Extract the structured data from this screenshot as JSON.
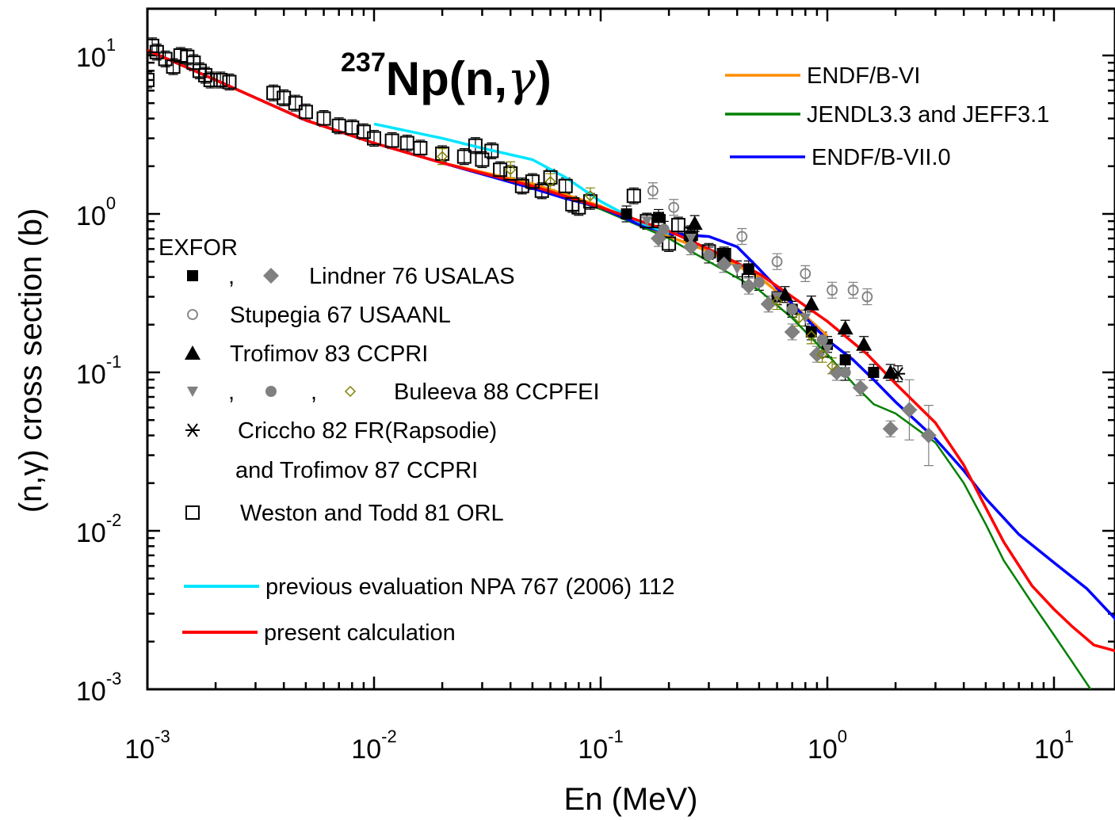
{
  "chart_data": {
    "type": "scatter",
    "title": {
      "superscript": "237",
      "text": "Np(n,",
      "greek": "γ",
      "close": ")"
    },
    "xlabel": "En (MeV)",
    "ylabel": "(n,γ) cross section (b)",
    "x_scale": "log",
    "y_scale": "log",
    "xlim": [
      0.001,
      20
    ],
    "ylim": [
      0.001,
      20
    ],
    "x_ticks": [
      {
        "base": "10",
        "exp": "-3",
        "value": 0.001
      },
      {
        "base": "10",
        "exp": "-2",
        "value": 0.01
      },
      {
        "base": "10",
        "exp": "-1",
        "value": 0.1
      },
      {
        "base": "10",
        "exp": "0",
        "value": 1
      },
      {
        "base": "10",
        "exp": "1",
        "value": 10
      }
    ],
    "y_ticks": [
      {
        "base": "10",
        "exp": "-3",
        "value": 0.001
      },
      {
        "base": "10",
        "exp": "-2",
        "value": 0.01
      },
      {
        "base": "10",
        "exp": "-1",
        "value": 0.1
      },
      {
        "base": "10",
        "exp": "0",
        "value": 1
      },
      {
        "base": "10",
        "exp": "1",
        "value": 10
      }
    ],
    "evaluations_legend": [
      {
        "label": "ENDF/B-VI",
        "color": "#ff8c00"
      },
      {
        "label": "JENDL3.3 and JEFF3.1",
        "color": "#008000"
      },
      {
        "label": "ENDF/B-VII.0",
        "color": "#0000ff"
      }
    ],
    "exfor_legend": {
      "heading": "EXFOR",
      "entries": [
        {
          "markers": [
            "square-filled",
            "diamond-gray"
          ],
          "label": "Lindner 76 USALAS"
        },
        {
          "markers": [
            "circle-open"
          ],
          "label": "Stupegia 67 USAANL"
        },
        {
          "markers": [
            "triangle-filled"
          ],
          "label": "Trofimov 83 CCPRI"
        },
        {
          "markers": [
            "triangle-down-gray",
            "circle-gray",
            "diamond-open-olive"
          ],
          "label": "Buleeva 88 CCPFEI"
        },
        {
          "markers": [
            "asterisk"
          ],
          "label": "Criccho 82 FR(Rapsodie)",
          "label2": "and Trofimov 87 CCPRI"
        },
        {
          "markers": [
            "square-open"
          ],
          "label": "Weston and Todd 81 ORL"
        }
      ]
    },
    "calc_legend": [
      {
        "label": "previous evaluation NPA 767 (2006) 112",
        "color": "#00e5ff"
      },
      {
        "label": "present calculation",
        "color": "#ff0000"
      }
    ],
    "series_lines": [
      {
        "name": "ENDF/B-VI",
        "color": "#ff8c00",
        "points": [
          [
            0.001,
            10.8
          ],
          [
            0.002,
            7.0
          ],
          [
            0.005,
            3.9
          ],
          [
            0.01,
            2.8
          ],
          [
            0.02,
            2.1
          ],
          [
            0.05,
            1.55
          ],
          [
            0.1,
            1.12
          ],
          [
            0.2,
            0.72
          ],
          [
            0.3,
            0.58
          ],
          [
            0.5,
            0.4
          ],
          [
            0.7,
            0.27
          ],
          [
            1.0,
            0.17
          ]
        ]
      },
      {
        "name": "JENDL3.3 and JEFF3.1",
        "color": "#008000",
        "points": [
          [
            0.001,
            10.8
          ],
          [
            0.002,
            7.0
          ],
          [
            0.005,
            3.9
          ],
          [
            0.01,
            2.8
          ],
          [
            0.02,
            2.1
          ],
          [
            0.05,
            1.5
          ],
          [
            0.1,
            1.07
          ],
          [
            0.2,
            0.7
          ],
          [
            0.3,
            0.5
          ],
          [
            0.5,
            0.33
          ],
          [
            0.7,
            0.22
          ],
          [
            1.0,
            0.13
          ],
          [
            1.3,
            0.085
          ],
          [
            1.6,
            0.063
          ],
          [
            2.0,
            0.055
          ],
          [
            3.0,
            0.036
          ],
          [
            4.0,
            0.02
          ],
          [
            5.0,
            0.011
          ],
          [
            6.0,
            0.0065
          ],
          [
            8.0,
            0.0035
          ],
          [
            10.0,
            0.0022
          ],
          [
            12.0,
            0.0015
          ],
          [
            14.5,
            0.001
          ]
        ]
      },
      {
        "name": "ENDF/B-VII.0",
        "color": "#0000ff",
        "points": [
          [
            0.001,
            10.8
          ],
          [
            0.002,
            7.0
          ],
          [
            0.005,
            3.9
          ],
          [
            0.01,
            2.8
          ],
          [
            0.02,
            2.1
          ],
          [
            0.05,
            1.45
          ],
          [
            0.07,
            1.25
          ],
          [
            0.1,
            1.1
          ],
          [
            0.15,
            0.85
          ],
          [
            0.2,
            0.75
          ],
          [
            0.3,
            0.72
          ],
          [
            0.4,
            0.62
          ],
          [
            0.5,
            0.45
          ],
          [
            0.7,
            0.27
          ],
          [
            1.0,
            0.16
          ],
          [
            1.3,
            0.12
          ],
          [
            1.6,
            0.09
          ],
          [
            2.0,
            0.065
          ],
          [
            3.0,
            0.038
          ],
          [
            4.0,
            0.024
          ],
          [
            5.0,
            0.016
          ],
          [
            7.0,
            0.0095
          ],
          [
            10.0,
            0.0063
          ],
          [
            14.0,
            0.0043
          ],
          [
            20.0,
            0.0025
          ]
        ]
      },
      {
        "name": "previous evaluation NPA 767 (2006) 112",
        "color": "#00e5ff",
        "points": [
          [
            0.01,
            3.7
          ],
          [
            0.02,
            3.0
          ],
          [
            0.03,
            2.6
          ],
          [
            0.05,
            2.2
          ],
          [
            0.07,
            1.7
          ],
          [
            0.1,
            1.2
          ],
          [
            0.15,
            0.88
          ],
          [
            0.2,
            0.75
          ]
        ]
      },
      {
        "name": "present calculation",
        "color": "#ff0000",
        "points": [
          [
            0.001,
            10.8
          ],
          [
            0.002,
            7.0
          ],
          [
            0.005,
            3.9
          ],
          [
            0.01,
            2.8
          ],
          [
            0.02,
            2.1
          ],
          [
            0.05,
            1.5
          ],
          [
            0.1,
            1.1
          ],
          [
            0.2,
            0.78
          ],
          [
            0.3,
            0.6
          ],
          [
            0.5,
            0.42
          ],
          [
            0.7,
            0.3
          ],
          [
            1.0,
            0.21
          ],
          [
            1.5,
            0.13
          ],
          [
            2.0,
            0.085
          ],
          [
            3.0,
            0.048
          ],
          [
            4.0,
            0.026
          ],
          [
            5.0,
            0.014
          ],
          [
            6.0,
            0.0085
          ],
          [
            8.0,
            0.0045
          ],
          [
            10.0,
            0.0032
          ],
          [
            12.0,
            0.0025
          ],
          [
            15.0,
            0.0019
          ],
          [
            20.0,
            0.0017
          ]
        ]
      }
    ],
    "series_points": [
      {
        "marker": "square-open",
        "points": [
          [
            0.001,
            7.0
          ],
          [
            0.00105,
            11.5
          ],
          [
            0.0011,
            10.5
          ],
          [
            0.0012,
            9.5
          ],
          [
            0.0013,
            8.5
          ],
          [
            0.0014,
            10.0
          ],
          [
            0.0015,
            9.8
          ],
          [
            0.0016,
            9.0
          ],
          [
            0.0017,
            8.0
          ],
          [
            0.0018,
            7.5
          ],
          [
            0.0019,
            7.0
          ],
          [
            0.0021,
            7.0
          ],
          [
            0.0023,
            6.8
          ],
          [
            0.0036,
            5.8
          ],
          [
            0.004,
            5.4
          ],
          [
            0.0045,
            5.0
          ],
          [
            0.005,
            4.4
          ],
          [
            0.006,
            4.0
          ],
          [
            0.007,
            3.6
          ],
          [
            0.008,
            3.5
          ],
          [
            0.009,
            3.3
          ],
          [
            0.01,
            3.0
          ],
          [
            0.012,
            2.9
          ],
          [
            0.014,
            2.8
          ],
          [
            0.016,
            2.6
          ],
          [
            0.02,
            2.4
          ],
          [
            0.025,
            2.3
          ],
          [
            0.03,
            2.2
          ],
          [
            0.028,
            2.7
          ],
          [
            0.033,
            2.5
          ],
          [
            0.036,
            1.9
          ],
          [
            0.04,
            1.8
          ],
          [
            0.045,
            1.5
          ],
          [
            0.05,
            1.6
          ],
          [
            0.055,
            1.4
          ],
          [
            0.06,
            1.7
          ],
          [
            0.07,
            1.5
          ],
          [
            0.075,
            1.15
          ],
          [
            0.08,
            1.1
          ],
          [
            0.09,
            1.2
          ],
          [
            0.14,
            1.3
          ],
          [
            0.16,
            0.9
          ],
          [
            0.18,
            0.9
          ],
          [
            0.2,
            0.65
          ],
          [
            0.22,
            0.85
          ],
          [
            0.25,
            0.75
          ],
          [
            0.3,
            0.58
          ],
          [
            0.35,
            0.55
          ],
          [
            0.45,
            0.38
          ]
        ]
      },
      {
        "marker": "square-filled",
        "points": [
          [
            0.13,
            1.0
          ],
          [
            0.18,
            0.95
          ],
          [
            0.25,
            0.72
          ],
          [
            0.35,
            0.55
          ],
          [
            0.45,
            0.45
          ],
          [
            0.6,
            0.3
          ],
          [
            0.7,
            0.25
          ],
          [
            0.85,
            0.18
          ],
          [
            1.0,
            0.15
          ],
          [
            1.2,
            0.12
          ],
          [
            1.6,
            0.1
          ]
        ]
      },
      {
        "marker": "diamond-gray",
        "points": [
          [
            0.18,
            0.7
          ],
          [
            0.25,
            0.62
          ],
          [
            0.35,
            0.48
          ],
          [
            0.45,
            0.35
          ],
          [
            0.55,
            0.27
          ],
          [
            0.7,
            0.18
          ],
          [
            0.9,
            0.13
          ],
          [
            1.1,
            0.1
          ],
          [
            1.4,
            0.08
          ],
          [
            1.9,
            0.044
          ],
          [
            2.3,
            0.058
          ],
          [
            2.8,
            0.04
          ]
        ]
      },
      {
        "marker": "circle-open",
        "points": [
          [
            0.17,
            1.4
          ],
          [
            0.21,
            1.1
          ],
          [
            0.42,
            0.72
          ],
          [
            0.6,
            0.5
          ],
          [
            0.8,
            0.42
          ],
          [
            1.05,
            0.33
          ],
          [
            1.3,
            0.33
          ],
          [
            1.5,
            0.3
          ]
        ]
      },
      {
        "marker": "triangle-filled",
        "points": [
          [
            0.26,
            0.87
          ],
          [
            0.65,
            0.31
          ],
          [
            0.85,
            0.27
          ],
          [
            1.2,
            0.19
          ],
          [
            1.45,
            0.15
          ],
          [
            1.9,
            0.1
          ]
        ]
      },
      {
        "marker": "triangle-down-gray",
        "points": [
          [
            0.16,
            0.9
          ],
          [
            0.25,
            0.7
          ],
          [
            0.4,
            0.45
          ],
          [
            0.6,
            0.3
          ],
          [
            0.8,
            0.22
          ],
          [
            1.0,
            0.14
          ]
        ]
      },
      {
        "marker": "circle-gray",
        "points": [
          [
            0.19,
            0.8
          ],
          [
            0.3,
            0.55
          ],
          [
            0.5,
            0.37
          ],
          [
            0.7,
            0.25
          ],
          [
            0.95,
            0.16
          ],
          [
            1.2,
            0.1
          ]
        ]
      },
      {
        "marker": "diamond-open-olive",
        "points": [
          [
            0.02,
            2.3
          ],
          [
            0.04,
            1.9
          ],
          [
            0.06,
            1.6
          ],
          [
            0.09,
            1.3
          ],
          [
            0.6,
            0.28
          ],
          [
            0.75,
            0.22
          ],
          [
            0.85,
            0.17
          ],
          [
            0.95,
            0.13
          ],
          [
            1.05,
            0.11
          ]
        ]
      },
      {
        "marker": "asterisk",
        "points": [
          [
            2.05,
            0.098
          ]
        ]
      }
    ]
  }
}
